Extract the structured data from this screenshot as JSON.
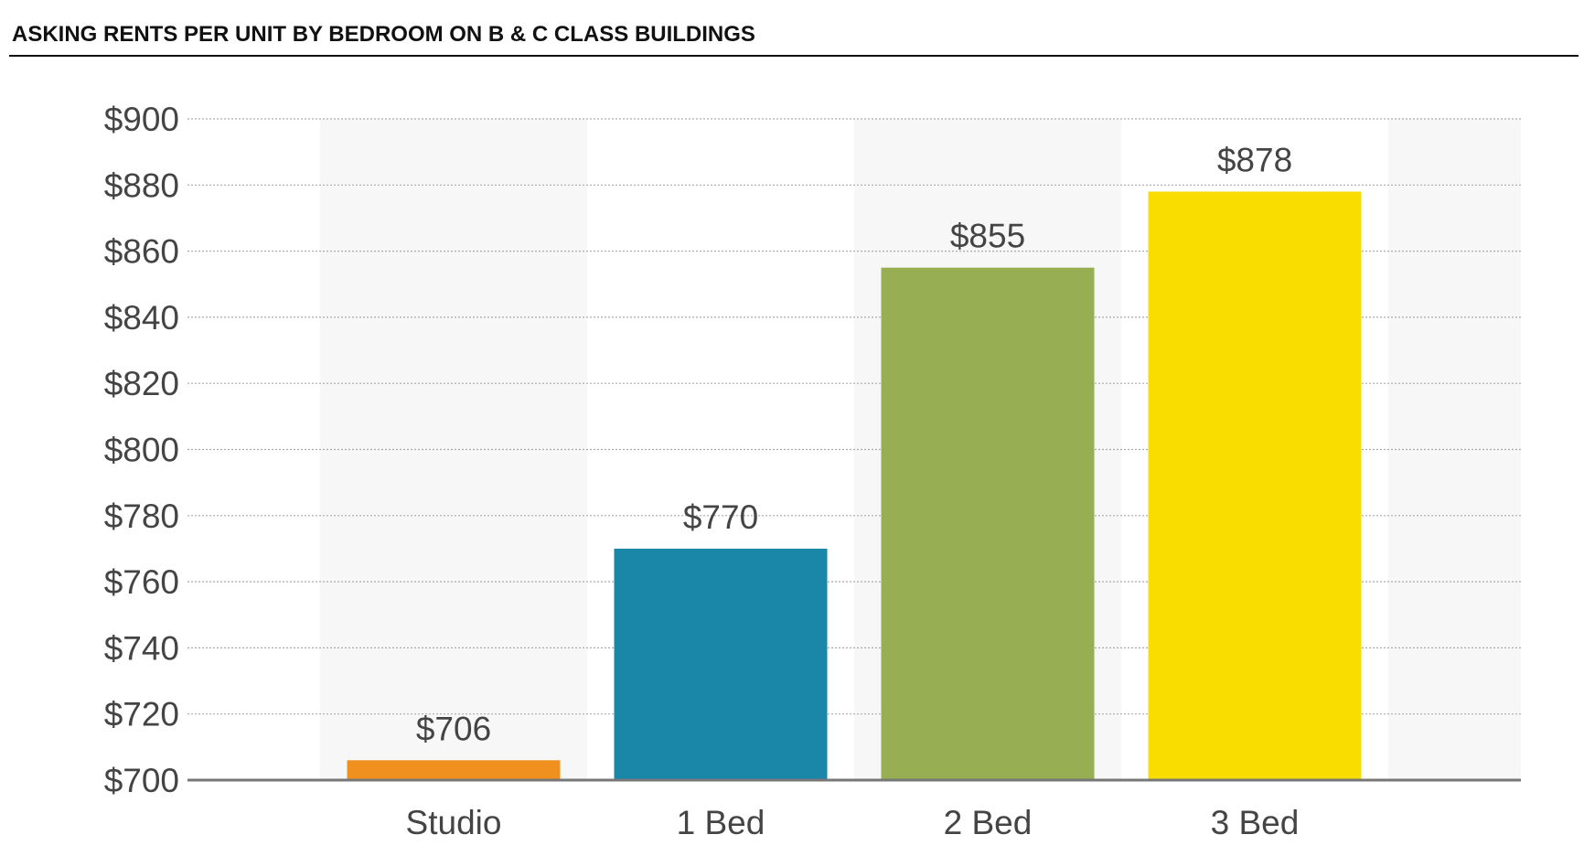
{
  "chart_data": {
    "type": "bar",
    "title": "ASKING RENTS PER UNIT BY BEDROOM ON B & C CLASS BUILDINGS",
    "categories": [
      "Studio",
      "1 Bed",
      "2 Bed",
      "3 Bed"
    ],
    "values": [
      706,
      770,
      855,
      878
    ],
    "data_labels": [
      "$706",
      "$770",
      "$855",
      "$878"
    ],
    "colors": [
      "#F0901E",
      "#1A87A8",
      "#97AE52",
      "#F9DD00"
    ],
    "ylim": [
      700,
      900
    ],
    "yticks": [
      700,
      720,
      740,
      760,
      780,
      800,
      820,
      840,
      860,
      880,
      900
    ],
    "ytick_labels": [
      "$700",
      "$720",
      "$740",
      "$760",
      "$780",
      "$800",
      "$820",
      "$840",
      "$860",
      "$880",
      "$900"
    ],
    "xlabel": "",
    "ylabel": "",
    "grid": true
  }
}
